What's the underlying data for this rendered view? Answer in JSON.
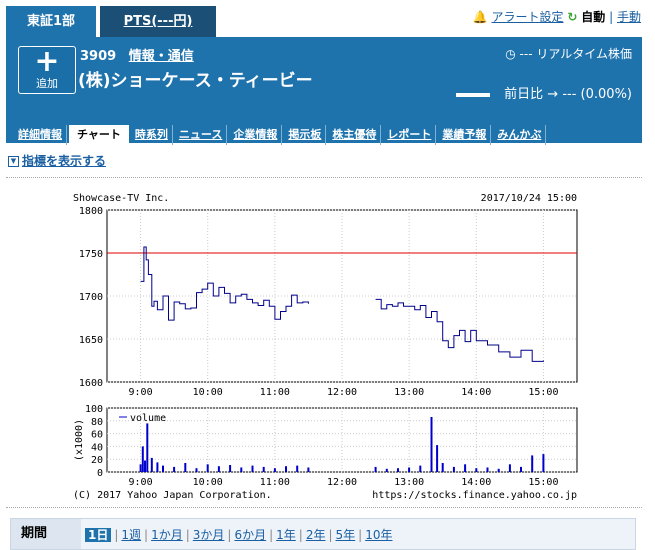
{
  "tabs": {
    "active": "東証1部",
    "pts": "PTS(---円)"
  },
  "alert": {
    "bell_icon": "bell-icon",
    "link": "アラート設定",
    "refresh_icon": "refresh-icon",
    "auto": "自動",
    "divider": "|",
    "manual": "手動"
  },
  "stock": {
    "add_plus": "+",
    "add_label": "追加",
    "code": "3909",
    "industry": "情報・通信",
    "name": "(株)ショーケース・ティービー",
    "realtime": "--- リアルタイム株価",
    "change_label": "前日比",
    "change_value": "---",
    "change_pct": "(0.00%)"
  },
  "nav": [
    "詳細情報",
    "チャート",
    "時系列",
    "ニュース",
    "企業情報",
    "掲示板",
    "株主優待",
    "レポート",
    "業績予報",
    "みんかぶ"
  ],
  "nav_active": "チャート",
  "indicator_link": "指標を表示する",
  "chart_data": [
    {
      "type": "line",
      "title": "Showcase-TV Inc.",
      "date": "2017/10/24 15:00",
      "xlabel": "",
      "ylabel": "",
      "x_ticks": [
        "9:00",
        "10:00",
        "11:00",
        "12:00",
        "13:00",
        "14:00",
        "15:00"
      ],
      "y_ticks": [
        1600,
        1650,
        1700,
        1750,
        1800
      ],
      "ylim": [
        1600,
        1800
      ],
      "reference_line": 1750,
      "series": [
        {
          "name": "",
          "segment": "morning",
          "x": [
            "9:00",
            "9:03",
            "9:05",
            "9:07",
            "9:10",
            "9:12",
            "9:15",
            "9:20",
            "9:25",
            "9:30",
            "9:35",
            "9:40",
            "9:45",
            "9:50",
            "9:55",
            "10:00",
            "10:05",
            "10:10",
            "10:15",
            "10:20",
            "10:25",
            "10:30",
            "10:35",
            "10:40",
            "10:45",
            "10:50",
            "10:55",
            "11:00",
            "11:05",
            "11:10",
            "11:15",
            "11:20",
            "11:25",
            "11:30"
          ],
          "y": [
            1717,
            1757,
            1742,
            1725,
            1688,
            1694,
            1684,
            1700,
            1672,
            1693,
            1691,
            1685,
            1686,
            1704,
            1708,
            1715,
            1700,
            1710,
            1703,
            1692,
            1700,
            1702,
            1696,
            1692,
            1689,
            1695,
            1688,
            1673,
            1682,
            1688,
            1701,
            1692,
            1693,
            1691
          ]
        },
        {
          "name": "",
          "segment": "afternoon",
          "x": [
            "12:30",
            "12:35",
            "12:40",
            "12:45",
            "12:50",
            "12:55",
            "13:00",
            "13:05",
            "13:10",
            "13:15",
            "13:20",
            "13:25",
            "13:30",
            "13:35",
            "13:40",
            "13:45",
            "13:50",
            "13:55",
            "14:00",
            "14:10",
            "14:20",
            "14:30",
            "14:40",
            "14:50",
            "15:00"
          ],
          "y": [
            1696,
            1685,
            1690,
            1688,
            1692,
            1688,
            1688,
            1684,
            1689,
            1675,
            1682,
            1670,
            1648,
            1640,
            1654,
            1660,
            1647,
            1660,
            1648,
            1643,
            1635,
            1629,
            1637,
            1624,
            1625
          ]
        }
      ]
    },
    {
      "type": "bar",
      "title": "",
      "legend": "volume",
      "ylabel": "(x1000)",
      "y_ticks": [
        0,
        20,
        40,
        60,
        80,
        100
      ],
      "ylim": [
        0,
        100
      ],
      "x_ticks": [
        "9:00",
        "10:00",
        "11:00",
        "12:00",
        "13:00",
        "14:00",
        "15:00"
      ],
      "series": [
        {
          "name": "volume",
          "x": [
            "9:00",
            "9:02",
            "9:04",
            "9:06",
            "9:10",
            "9:15",
            "9:20",
            "9:30",
            "9:40",
            "9:50",
            "10:00",
            "10:10",
            "10:20",
            "10:30",
            "10:40",
            "10:50",
            "11:00",
            "11:10",
            "11:20",
            "11:30",
            "12:30",
            "12:40",
            "12:50",
            "13:00",
            "13:10",
            "13:20",
            "13:25",
            "13:30",
            "13:40",
            "13:50",
            "14:00",
            "14:10",
            "14:20",
            "14:30",
            "14:40",
            "14:50",
            "15:00"
          ],
          "values": [
            12,
            40,
            18,
            76,
            22,
            15,
            10,
            8,
            14,
            6,
            12,
            9,
            11,
            7,
            10,
            8,
            6,
            9,
            10,
            7,
            8,
            5,
            6,
            7,
            10,
            86,
            42,
            14,
            8,
            12,
            6,
            7,
            5,
            12,
            8,
            26,
            28
          ]
        }
      ]
    }
  ],
  "copyright": "(C) 2017 Yahoo Japan Corporation.",
  "source_url": "https://stocks.finance.yahoo.co.jp",
  "period": {
    "label": "期間",
    "options": [
      "1日",
      "1週",
      "1か月",
      "3か月",
      "6か月",
      "1年",
      "2年",
      "5年",
      "10年"
    ],
    "active": "1日"
  },
  "colors": {
    "brand": "#1f73ad",
    "price_line": "#00008b",
    "volume": "#0000cd",
    "reference": "#e00000"
  }
}
